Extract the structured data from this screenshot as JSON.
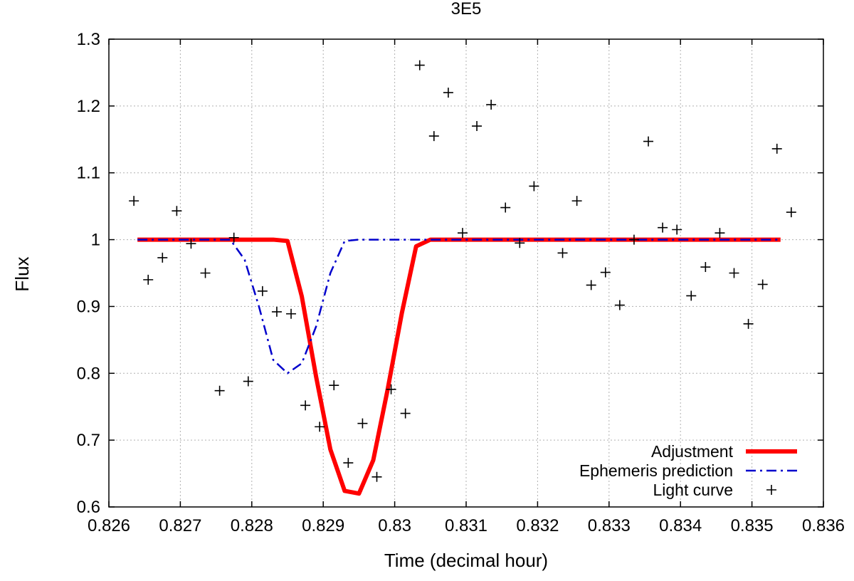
{
  "chart_data": {
    "type": "line",
    "title": "3E5",
    "xlabel": "Time (decimal hour)",
    "ylabel": "Flux",
    "xlim": [
      0.826,
      0.836
    ],
    "ylim": [
      0.6,
      1.3
    ],
    "grid": true,
    "legend_position": "bottom-right",
    "x_ticks": [
      0.826,
      0.827,
      0.828,
      0.829,
      0.83,
      0.831,
      0.832,
      0.833,
      0.834,
      0.835,
      0.836
    ],
    "x_tick_labels": [
      "0.826",
      "0.827",
      "0.828",
      "0.829",
      "0.83",
      "0.831",
      "0.832",
      "0.833",
      "0.834",
      "0.835",
      "0.836"
    ],
    "y_ticks": [
      0.6,
      0.7,
      0.8,
      0.9,
      1.0,
      1.1,
      1.2,
      1.3
    ],
    "y_tick_labels": [
      "0.6",
      "0.7",
      "0.8",
      "0.9",
      "1",
      "1.1",
      "1.2",
      "1.3"
    ],
    "series": [
      {
        "name": "Adjustment",
        "style": "solid",
        "color": "#ff0000",
        "x": [
          0.8264,
          0.8283,
          0.8285,
          0.8287,
          0.8289,
          0.8291,
          0.8293,
          0.8295,
          0.8297,
          0.8299,
          0.8301,
          0.8303,
          0.8305,
          0.8354
        ],
        "y": [
          1.0,
          1.0,
          0.998,
          0.915,
          0.795,
          0.686,
          0.624,
          0.62,
          0.67,
          0.775,
          0.89,
          0.99,
          1.0,
          1.0
        ]
      },
      {
        "name": "Ephemeris prediction",
        "style": "dash-dot",
        "color": "#0000cc",
        "x": [
          0.8264,
          0.8277,
          0.8279,
          0.8281,
          0.8283,
          0.8285,
          0.8287,
          0.8289,
          0.8291,
          0.8293,
          0.8295,
          0.8354
        ],
        "y": [
          1.0,
          1.0,
          0.97,
          0.9,
          0.82,
          0.8,
          0.815,
          0.87,
          0.95,
          0.998,
          1.0,
          1.0
        ]
      },
      {
        "name": "Light curve",
        "style": "points",
        "color": "#000000",
        "x": [
          0.82635,
          0.82655,
          0.82675,
          0.82695,
          0.82715,
          0.82735,
          0.82755,
          0.82775,
          0.82795,
          0.82815,
          0.82835,
          0.82855,
          0.82875,
          0.82895,
          0.82915,
          0.82935,
          0.82955,
          0.82975,
          0.82995,
          0.83015,
          0.83035,
          0.83055,
          0.83075,
          0.83095,
          0.83115,
          0.83135,
          0.83155,
          0.83175,
          0.83195,
          0.83235,
          0.83255,
          0.83275,
          0.83295,
          0.83315,
          0.83335,
          0.83355,
          0.83375,
          0.83395,
          0.83415,
          0.83435,
          0.83455,
          0.83475,
          0.83495,
          0.83515,
          0.83535,
          0.83555
        ],
        "y": [
          1.058,
          0.94,
          0.973,
          1.043,
          0.994,
          0.95,
          0.774,
          1.003,
          0.788,
          0.923,
          0.892,
          0.889,
          0.752,
          0.72,
          0.782,
          0.666,
          0.725,
          0.645,
          0.776,
          0.74,
          1.261,
          1.155,
          1.22,
          1.01,
          1.17,
          1.202,
          1.048,
          0.995,
          1.08,
          0.98,
          1.058,
          0.932,
          0.951,
          0.902,
          1.0,
          1.147,
          1.018,
          1.015,
          0.916,
          0.959,
          1.01,
          0.95,
          0.874,
          0.933,
          1.136,
          1.041
        ]
      }
    ]
  }
}
